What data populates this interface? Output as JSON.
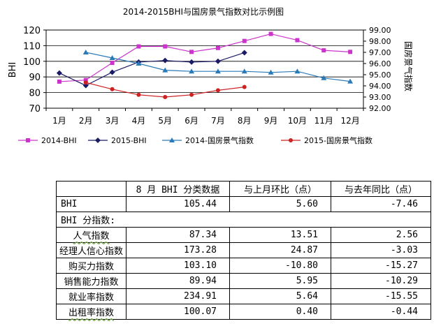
{
  "chart_data": {
    "type": "line",
    "title": "2014-2015BHI与国房景气指数对比示例图",
    "categories": [
      "1月",
      "2月",
      "3月",
      "4月",
      "5月",
      "6月",
      "7月",
      "8月",
      "9月",
      "10月",
      "11月",
      "12月"
    ],
    "ylabel": "BHI",
    "y2label": "国房景气指数",
    "ylim": [
      70,
      120
    ],
    "yticks": [
      "70",
      "80",
      "90",
      "100",
      "110",
      "120"
    ],
    "y2lim": [
      92.0,
      99.0
    ],
    "y2ticks": [
      "92.00",
      "93.00",
      "94.00",
      "95.00",
      "96.00",
      "97.00",
      "98.00",
      "99.00"
    ],
    "legend_position": "bottom",
    "series": [
      {
        "name": "2014-BHI",
        "axis": "left",
        "color": "#cc33cc",
        "marker": "square",
        "values": [
          87,
          88,
          99,
          109.5,
          109.5,
          106,
          108.5,
          113,
          117.5,
          113.5,
          107,
          106
        ]
      },
      {
        "name": "2015-BHI",
        "axis": "left",
        "color": "#1a1a66",
        "marker": "diamond",
        "values": [
          92.5,
          84.5,
          93,
          99.5,
          100.5,
          99.5,
          100,
          105.5,
          null,
          null,
          null,
          null
        ]
      },
      {
        "name": "2014-国房景气指数",
        "axis": "right",
        "color": "#2a7ab8",
        "marker": "triangle",
        "values": [
          null,
          97.0,
          96.5,
          96.0,
          95.4,
          95.3,
          95.3,
          95.3,
          95.2,
          95.3,
          94.7,
          94.4
        ]
      },
      {
        "name": "2015-国房景气指数",
        "axis": "right",
        "color": "#cc2222",
        "marker": "circle",
        "values": [
          null,
          94.3,
          93.7,
          93.2,
          93.0,
          93.2,
          93.6,
          93.9,
          null,
          null,
          null,
          null
        ]
      }
    ]
  },
  "table": {
    "headers": [
      "",
      "8 月 BHI 分类数据",
      "与上月环比（点）",
      "与去年同比（点）"
    ],
    "total_row": {
      "label": "BHI",
      "v1": "105.44",
      "v2": "5.60",
      "v3": "-7.46"
    },
    "section_label": "BHI 分指数:",
    "rows": [
      {
        "label": "人气指数",
        "v1": "87.34",
        "v2": "13.51",
        "v3": "2.56"
      },
      {
        "label": "经理人信心指数",
        "v1": "173.28",
        "v2": "24.87",
        "v3": "-3.03"
      },
      {
        "label": "购买力指数",
        "v1": "103.10",
        "v2": "-10.80",
        "v3": "-15.27"
      },
      {
        "label": "销售能力指数",
        "v1": "89.94",
        "v2": "5.95",
        "v3": "-10.29"
      },
      {
        "label": "就业率指数",
        "v1": "234.91",
        "v2": "5.64",
        "v3": "-15.55"
      },
      {
        "label": "出租率指数",
        "v1": "100.07",
        "v2": "0.40",
        "v3": "-0.44"
      }
    ]
  }
}
